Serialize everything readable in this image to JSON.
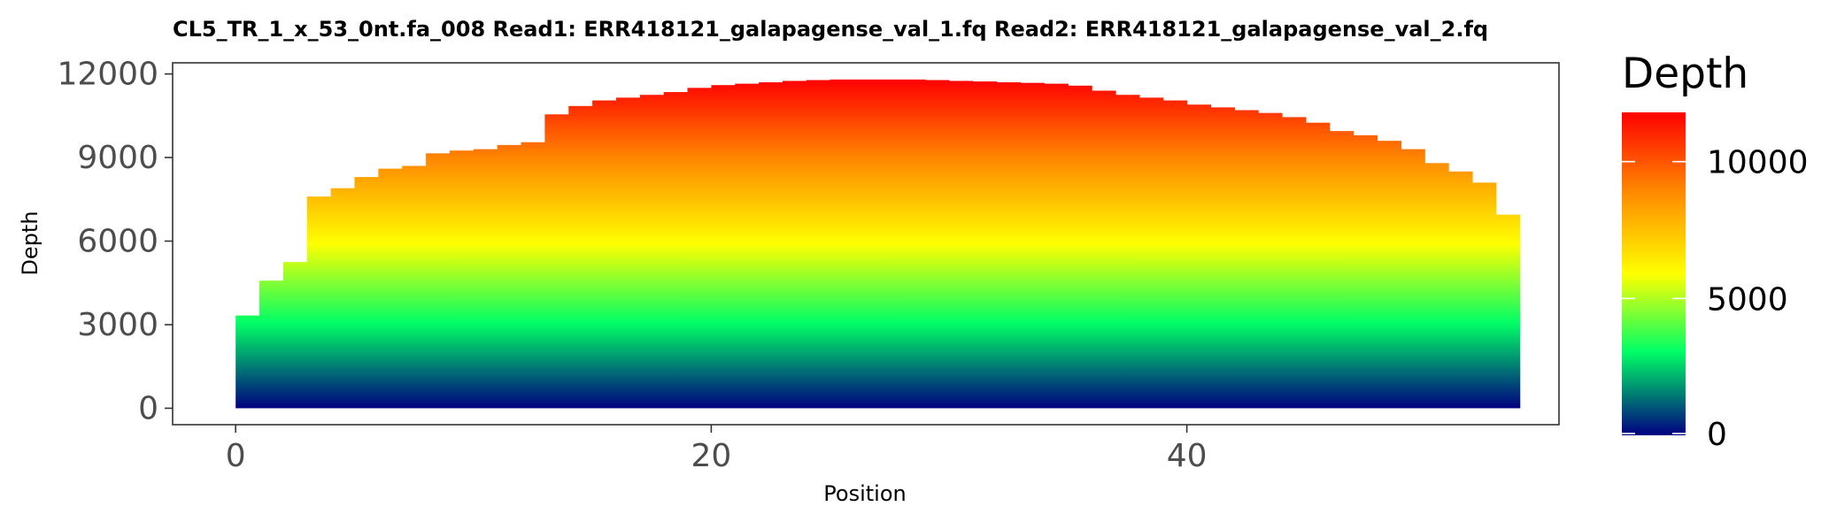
{
  "chart_data": {
    "type": "area",
    "title": "CL5_TR_1_x_53_0nt.fa_008   Read1: ERR418121_galapagense_val_1.fq   Read2: ERR418121_galapagense_val_2.fq",
    "xlabel": "Position",
    "ylabel": "Depth",
    "xlim": [
      -2.65,
      55.65
    ],
    "ylim": [
      -590,
      12400
    ],
    "x_ticks": [
      0,
      20,
      40
    ],
    "y_ticks": [
      0,
      3000,
      6000,
      9000,
      12000
    ],
    "x_tick_labels": [
      "0",
      "20",
      "40"
    ],
    "y_tick_labels": [
      "0",
      "3000",
      "6000",
      "9000",
      "12000"
    ],
    "step": "post",
    "fill": "gradient by depth",
    "grid": false,
    "series": [
      {
        "x": [
          0,
          1,
          2,
          3,
          4,
          5,
          6,
          7,
          8,
          9,
          10,
          11,
          12,
          13,
          14,
          15,
          16,
          17,
          18,
          19,
          20,
          21,
          22,
          23,
          24,
          25,
          26,
          27,
          28,
          29,
          30,
          31,
          32,
          33,
          34,
          35,
          36,
          37,
          38,
          39,
          40,
          41,
          42,
          43,
          44,
          45,
          46,
          47,
          48,
          49,
          50,
          51,
          52,
          53
        ],
        "values": [
          3330,
          4580,
          5250,
          7600,
          7900,
          8300,
          8600,
          8700,
          9150,
          9250,
          9300,
          9450,
          9550,
          10550,
          10850,
          11050,
          11150,
          11250,
          11350,
          11500,
          11600,
          11650,
          11700,
          11750,
          11780,
          11800,
          11800,
          11800,
          11800,
          11780,
          11750,
          11730,
          11700,
          11680,
          11650,
          11580,
          11400,
          11250,
          11150,
          11050,
          10900,
          10800,
          10700,
          10600,
          10450,
          10250,
          9950,
          9800,
          9600,
          9300,
          8800,
          8500,
          8100,
          6950
        ]
      }
    ],
    "legend": {
      "title": "Depth",
      "position": "right",
      "breaks": [
        0,
        5000,
        10000
      ],
      "labels": [
        "0",
        "5000",
        "10000"
      ],
      "range": [
        0,
        11800
      ],
      "colors": [
        {
          "stop": 0.0,
          "color": "#000080"
        },
        {
          "stop": 0.26,
          "color": "#00FF66"
        },
        {
          "stop": 0.5,
          "color": "#FFFF00"
        },
        {
          "stop": 0.75,
          "color": "#FF8C00"
        },
        {
          "stop": 1.0,
          "color": "#FF0000"
        }
      ]
    }
  }
}
